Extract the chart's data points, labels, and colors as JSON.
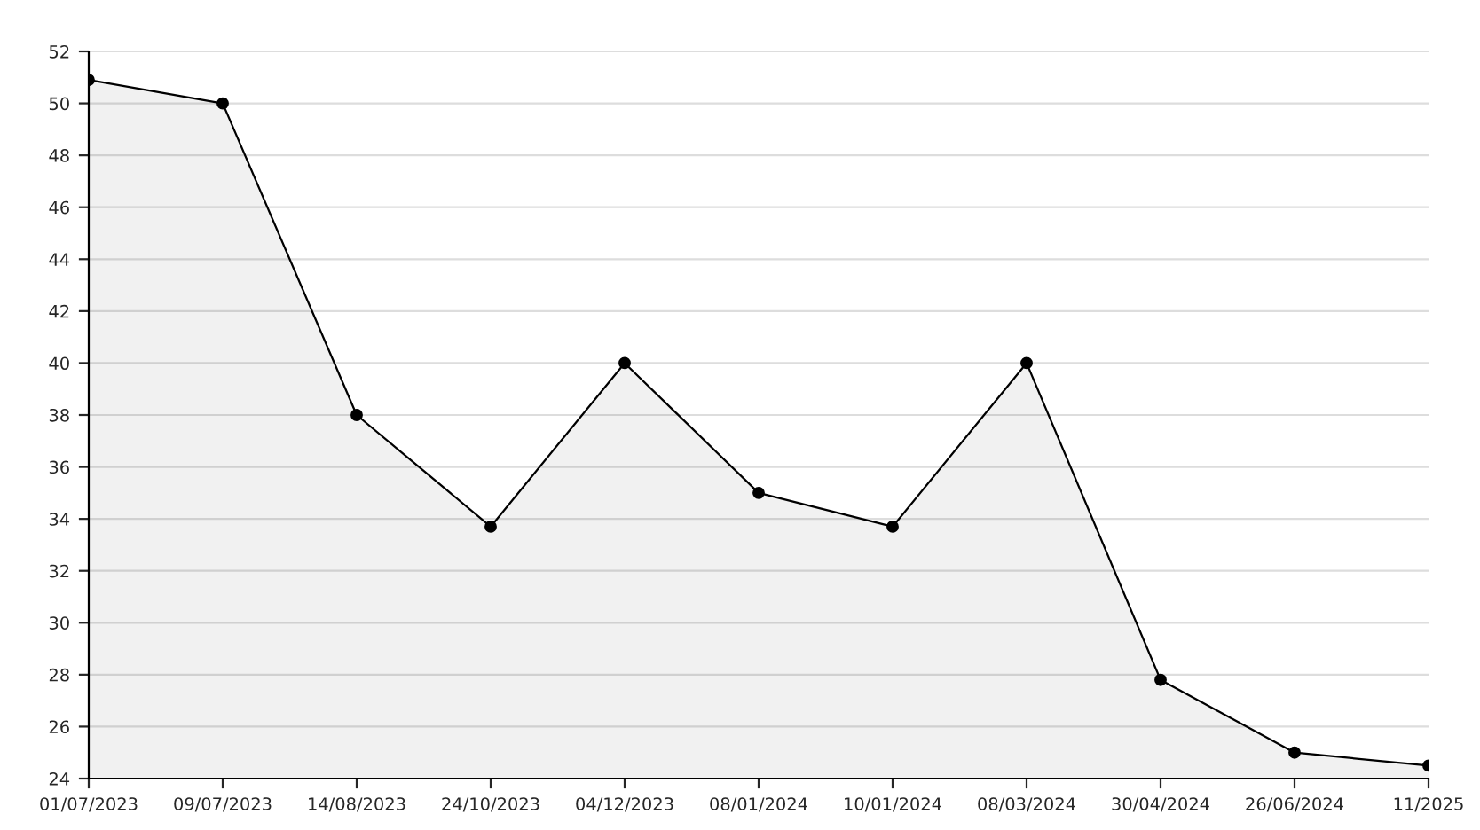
{
  "chart_data": {
    "type": "area",
    "categories": [
      "01/07/2023",
      "09/07/2023",
      "14/08/2023",
      "24/10/2023",
      "04/12/2023",
      "08/01/2024",
      "10/01/2024",
      "08/03/2024",
      "30/04/2024",
      "26/06/2024",
      "11/2025"
    ],
    "series": [
      {
        "color": "#000000",
        "values": [
          50.9,
          50.0,
          38.0,
          33.7,
          40.0,
          35.0,
          33.7,
          40.0,
          27.8,
          25.0,
          24.5
        ]
      }
    ],
    "ylim": [
      24,
      52
    ],
    "yticks": [
      24,
      26,
      28,
      30,
      32,
      34,
      36,
      38,
      40,
      42,
      44,
      46,
      48,
      50,
      52
    ],
    "grid": "y",
    "marker": "circle",
    "line_style": "solid"
  }
}
